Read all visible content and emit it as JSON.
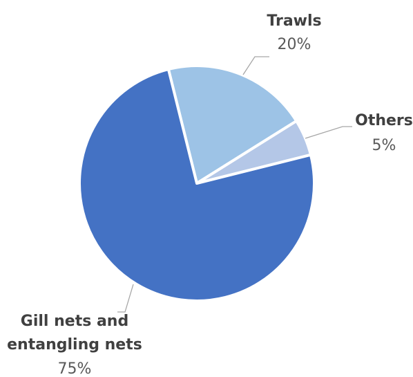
{
  "chart_data": {
    "type": "pie",
    "slices": [
      {
        "label": "Trawls",
        "value_label": "20%",
        "value": 20,
        "color": "#9dc3e6"
      },
      {
        "label": "Others",
        "value_label": "5%",
        "value": 5,
        "color": "#b4c7e7"
      },
      {
        "label": "Gill nets and entangling nets",
        "label_lines": [
          "Gill nets and",
          "entangling nets"
        ],
        "value_label": "75%",
        "value": 75,
        "color": "#4472c4"
      }
    ],
    "start_angle_deg": -14
  }
}
